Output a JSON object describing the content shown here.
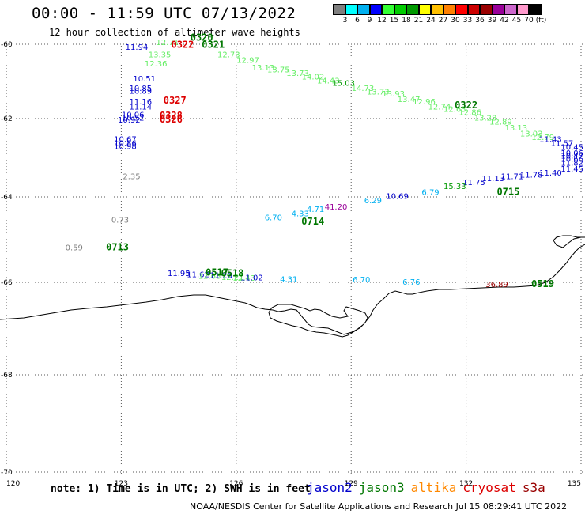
{
  "title": "00:00 - 11:59 UTC 07/13/2022",
  "subtitle": "12 hour collection of altimeter wave heights",
  "colorbar": {
    "colors": [
      "#7f7f7f",
      "#00ffff",
      "#00b0f0",
      "#0000ff",
      "#33ff33",
      "#00cc00",
      "#009900",
      "#ffff00",
      "#ffc000",
      "#ff8000",
      "#ff0000",
      "#cc0000",
      "#990000",
      "#990099",
      "#cc66cc",
      "#ff99cc",
      "#000000"
    ],
    "labels": [
      "3",
      "6",
      "9",
      "12",
      "15",
      "18",
      "21",
      "24",
      "27",
      "30",
      "33",
      "36",
      "39",
      "42",
      "45",
      "70",
      "(ft)"
    ]
  },
  "axes": {
    "lon_ticks": [
      "120",
      "123",
      "126",
      "129",
      "132",
      "135"
    ],
    "lat_ticks": [
      "-60",
      "-62",
      "-64",
      "-66",
      "-68",
      "-70"
    ],
    "lon_range": [
      120,
      135
    ],
    "lat_range": [
      -70,
      -60
    ]
  },
  "satellite_colors": {
    "jason2": "#0000cc",
    "jason3": "#007700",
    "altika": "#ff8800",
    "cryosat": "#dd0000",
    "s3a": "#990000"
  },
  "wave_labels": [
    {
      "v": "12.71",
      "lon": 124.5,
      "lat": -60.02,
      "c": "#66ee66"
    },
    {
      "v": "11.94",
      "lon": 123.7,
      "lat": -60.15,
      "c": "#0000cc"
    },
    {
      "v": "13.35",
      "lon": 124.3,
      "lat": -60.35,
      "c": "#66ee66"
    },
    {
      "v": "12.36",
      "lon": 124.2,
      "lat": -60.6,
      "c": "#66ee66"
    },
    {
      "v": "12.73",
      "lon": 126.1,
      "lat": -60.35,
      "c": "#66ee66"
    },
    {
      "v": "12.97",
      "lon": 126.6,
      "lat": -60.5,
      "c": "#66ee66"
    },
    {
      "v": "13.13",
      "lon": 127.0,
      "lat": -60.7,
      "c": "#66ee66"
    },
    {
      "v": "13.75",
      "lon": 127.4,
      "lat": -60.75,
      "c": "#66ee66"
    },
    {
      "v": "13.73",
      "lon": 127.9,
      "lat": -60.85,
      "c": "#66ee66"
    },
    {
      "v": "14.02",
      "lon": 128.3,
      "lat": -60.95,
      "c": "#66ee66"
    },
    {
      "v": "14.43",
      "lon": 128.7,
      "lat": -61.05,
      "c": "#66ee66"
    },
    {
      "v": "15.03",
      "lon": 129.1,
      "lat": -61.12,
      "c": "#009900"
    },
    {
      "v": "14.73",
      "lon": 129.6,
      "lat": -61.25,
      "c": "#66ee66"
    },
    {
      "v": "13.73",
      "lon": 130.0,
      "lat": -61.35,
      "c": "#66ee66"
    },
    {
      "v": "13.93",
      "lon": 130.4,
      "lat": -61.4,
      "c": "#66ee66"
    },
    {
      "v": "13.47",
      "lon": 130.8,
      "lat": -61.55,
      "c": "#66ee66"
    },
    {
      "v": "12.96",
      "lon": 131.2,
      "lat": -61.62,
      "c": "#66ee66"
    },
    {
      "v": "12.74",
      "lon": 131.6,
      "lat": -61.75,
      "c": "#66ee66"
    },
    {
      "v": "12.63",
      "lon": 132.0,
      "lat": -61.82,
      "c": "#66ee66"
    },
    {
      "v": "12.86",
      "lon": 132.4,
      "lat": -61.9,
      "c": "#66ee66"
    },
    {
      "v": "13.28",
      "lon": 132.8,
      "lat": -62.05,
      "c": "#66ee66"
    },
    {
      "v": "12.89",
      "lon": 133.2,
      "lat": -62.15,
      "c": "#66ee66"
    },
    {
      "v": "13.13",
      "lon": 133.6,
      "lat": -62.3,
      "c": "#66ee66"
    },
    {
      "v": "13.03",
      "lon": 134.0,
      "lat": -62.45,
      "c": "#66ee66"
    },
    {
      "v": "12.79",
      "lon": 134.3,
      "lat": -62.55,
      "c": "#66ee66"
    },
    {
      "v": "11.43",
      "lon": 134.5,
      "lat": -62.6,
      "c": "#0000cc"
    },
    {
      "v": "11.57",
      "lon": 134.8,
      "lat": -62.7,
      "c": "#0000cc"
    },
    {
      "v": "10.45",
      "lon": 135.3,
      "lat": -62.8,
      "c": "#0000cc"
    },
    {
      "v": "10.06",
      "lon": 135.9,
      "lat": -62.95,
      "c": "#0000cc"
    },
    {
      "v": "10.47",
      "lon": 136.1,
      "lat": -63.02,
      "c": "#0000cc"
    },
    {
      "v": "10.66",
      "lon": 136.2,
      "lat": -63.1,
      "c": "#0000cc"
    },
    {
      "v": "11.82",
      "lon": 135.8,
      "lat": -63.2,
      "c": "#0000cc"
    },
    {
      "v": "11.45",
      "lon": 135.2,
      "lat": -63.35,
      "c": "#0000cc"
    },
    {
      "v": "11.40",
      "lon": 134.5,
      "lat": -63.45,
      "c": "#0000cc"
    },
    {
      "v": "11.78",
      "lon": 134.0,
      "lat": -63.5,
      "c": "#0000cc"
    },
    {
      "v": "11.71",
      "lon": 133.5,
      "lat": -63.55,
      "c": "#0000cc"
    },
    {
      "v": "11.13",
      "lon": 133.0,
      "lat": -63.6,
      "c": "#0000cc"
    },
    {
      "v": "11.75",
      "lon": 132.5,
      "lat": -63.7,
      "c": "#0000cc"
    },
    {
      "v": "15.33",
      "lon": 132.0,
      "lat": -63.8,
      "c": "#009900"
    },
    {
      "v": "6.79",
      "lon": 131.3,
      "lat": -63.95,
      "c": "#00b0f0"
    },
    {
      "v": "10.69",
      "lon": 130.5,
      "lat": -64.05,
      "c": "#0000cc"
    },
    {
      "v": "6.29",
      "lon": 129.8,
      "lat": -64.15,
      "c": "#00b0f0"
    },
    {
      "v": "41.20",
      "lon": 128.9,
      "lat": -64.3,
      "c": "#990099"
    },
    {
      "v": "4.71",
      "lon": 128.3,
      "lat": -64.35,
      "c": "#00b0f0"
    },
    {
      "v": "4.33",
      "lon": 127.9,
      "lat": -64.45,
      "c": "#00b0f0"
    },
    {
      "v": "6.70",
      "lon": 127.2,
      "lat": -64.55,
      "c": "#00b0f0"
    },
    {
      "v": "10.51",
      "lon": 123.9,
      "lat": -61.0,
      "c": "#0000cc"
    },
    {
      "v": "10.85",
      "lon": 123.8,
      "lat": -61.25,
      "c": "#0000cc"
    },
    {
      "v": "10.89",
      "lon": 123.8,
      "lat": -61.33,
      "c": "#0000cc"
    },
    {
      "v": "11.16",
      "lon": 123.8,
      "lat": -61.62,
      "c": "#0000cc"
    },
    {
      "v": "11.14",
      "lon": 123.8,
      "lat": -61.75,
      "c": "#0000cc"
    },
    {
      "v": "10.06",
      "lon": 123.6,
      "lat": -61.97,
      "c": "#0000cc"
    },
    {
      "v": "10.52",
      "lon": 123.6,
      "lat": -62.05,
      "c": "#0000cc"
    },
    {
      "v": "10.92",
      "lon": 123.5,
      "lat": -62.1,
      "c": "#0000cc"
    },
    {
      "v": "10.67",
      "lon": 123.4,
      "lat": -62.6,
      "c": "#0000cc"
    },
    {
      "v": "10.86",
      "lon": 123.4,
      "lat": -62.7,
      "c": "#0000cc"
    },
    {
      "v": "10.98",
      "lon": 123.4,
      "lat": -62.78,
      "c": "#0000cc"
    },
    {
      "v": "2.35",
      "lon": 123.5,
      "lat": -63.55,
      "c": "#7f7f7f"
    },
    {
      "v": "0.73",
      "lon": 123.2,
      "lat": -64.6,
      "c": "#7f7f7f"
    },
    {
      "v": "0.59",
      "lon": 122.0,
      "lat": -65.25,
      "c": "#7f7f7f"
    },
    {
      "v": "11.95",
      "lon": 124.8,
      "lat": -65.85,
      "c": "#0000cc"
    },
    {
      "v": "11.62",
      "lon": 125.3,
      "lat": -65.88,
      "c": "#0000cc"
    },
    {
      "v": "12.68",
      "lon": 125.6,
      "lat": -65.92,
      "c": "#66ee66"
    },
    {
      "v": "11.26",
      "lon": 125.9,
      "lat": -65.9,
      "c": "#0000cc"
    },
    {
      "v": "12.21",
      "lon": 126.2,
      "lat": -65.94,
      "c": "#66ee66"
    },
    {
      "v": "12.43",
      "lon": 126.5,
      "lat": -65.96,
      "c": "#66ee66"
    },
    {
      "v": "11.02",
      "lon": 126.7,
      "lat": -65.95,
      "c": "#0000cc"
    },
    {
      "v": "4.31",
      "lon": 127.6,
      "lat": -65.99,
      "c": "#00b0f0"
    },
    {
      "v": "6.70",
      "lon": 129.5,
      "lat": -66.0,
      "c": "#00b0f0"
    },
    {
      "v": "6.76",
      "lon": 130.8,
      "lat": -66.05,
      "c": "#00b0f0"
    },
    {
      "v": "36.89",
      "lon": 133.1,
      "lat": -66.1,
      "c": "#990000"
    }
  ],
  "time_labels": [
    {
      "t": "0320",
      "lon": 125.1,
      "lat": -59.9,
      "c": "#007700"
    },
    {
      "t": "0322",
      "lon": 124.6,
      "lat": -60.1,
      "c": "#dd0000"
    },
    {
      "t": "0321",
      "lon": 125.4,
      "lat": -60.1,
      "c": "#007700"
    },
    {
      "t": "0327",
      "lon": 124.4,
      "lat": -61.6,
      "c": "#dd0000"
    },
    {
      "t": "0328",
      "lon": 124.3,
      "lat": -62.0,
      "c": "#dd0000"
    },
    {
      "t": "0326",
      "lon": 124.3,
      "lat": -62.1,
      "c": "#dd0000"
    },
    {
      "t": "0322",
      "lon": 132.0,
      "lat": -61.72,
      "c": "#007700"
    },
    {
      "t": "0715",
      "lon": 133.1,
      "lat": -63.95,
      "c": "#007700"
    },
    {
      "t": "0714",
      "lon": 128.0,
      "lat": -64.65,
      "c": "#007700"
    },
    {
      "t": "0713",
      "lon": 122.9,
      "lat": -65.25,
      "c": "#007700"
    },
    {
      "t": "0517",
      "lon": 125.5,
      "lat": -65.84,
      "c": "#007700"
    },
    {
      "t": "0518",
      "lon": 125.9,
      "lat": -65.86,
      "c": "#007700"
    },
    {
      "t": "0519",
      "lon": 134.0,
      "lat": -66.1,
      "c": "#007700"
    }
  ],
  "note": "note: 1) Time is in UTC; 2) SWH is in feet",
  "satellites": [
    "jason2",
    "jason3",
    "altika",
    "cryosat",
    "s3a"
  ],
  "credit": "NOAA/NESDIS Center for Satellite Applications and Research    Jul 15 08:29:41 UTC 2022"
}
